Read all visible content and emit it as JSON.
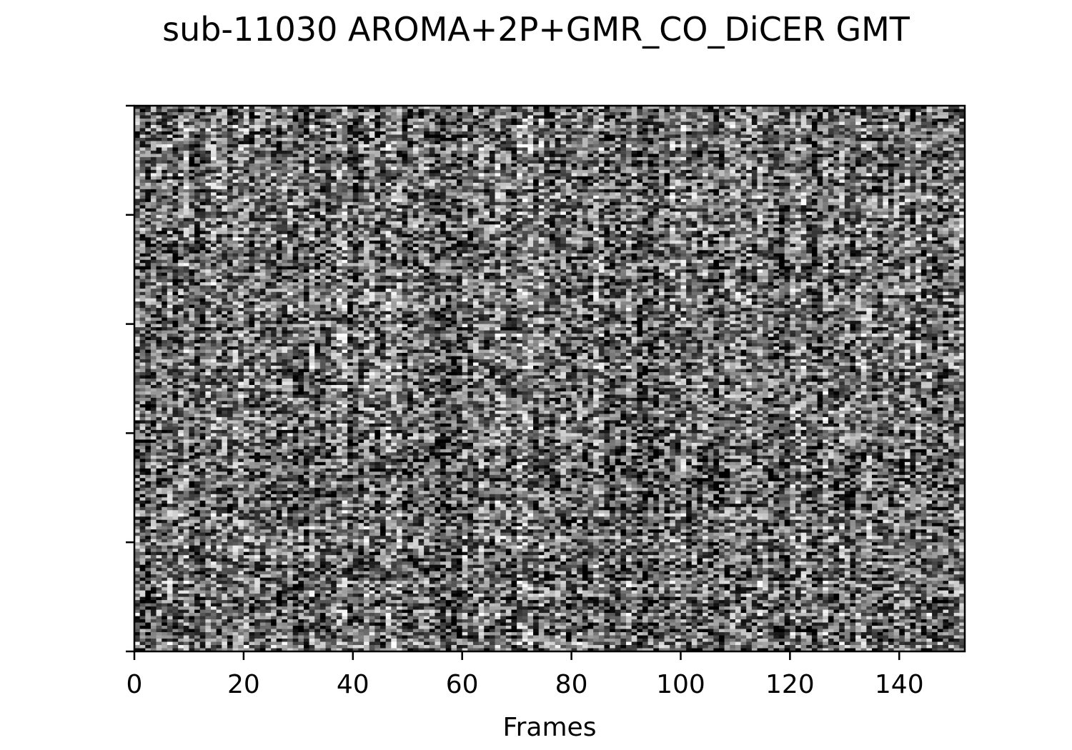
{
  "chart_data": {
    "type": "heatmap",
    "title": "sub-11030 AROMA+2P+GMR_CO_DiCER GMT",
    "xlabel": "Frames",
    "ylabel": "",
    "xlim": [
      0,
      152
    ],
    "x_ticks": [
      0,
      20,
      40,
      60,
      80,
      100,
      120,
      140
    ],
    "x_tick_labels": [
      "0",
      "20",
      "40",
      "60",
      "80",
      "100",
      "120",
      "140"
    ],
    "y_tick_count": 6,
    "y_tick_labels": [],
    "colormap": "grayscale",
    "n_frames": 152,
    "grid": false,
    "legend": "none"
  }
}
